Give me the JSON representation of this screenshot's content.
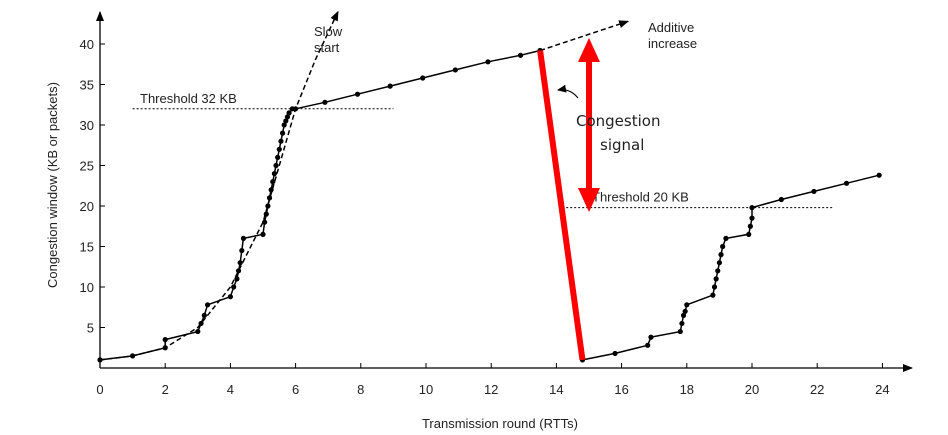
{
  "chart_data": {
    "type": "line",
    "xlabel": "Transmission round (RTTs)",
    "ylabel": "Congestion window  (KB or packets)",
    "xlim": [
      0,
      25
    ],
    "ylim": [
      0,
      42
    ],
    "x_ticks": [
      0,
      2,
      4,
      6,
      8,
      10,
      12,
      14,
      16,
      18,
      20,
      22,
      24
    ],
    "y_ticks": [
      5,
      10,
      15,
      20,
      25,
      30,
      35,
      40
    ],
    "grid": false,
    "series": [
      {
        "style": "solid-with-markers",
        "color": "#000000",
        "x": [
          0,
          1,
          2,
          2,
          3,
          3.1,
          3.2,
          3.3,
          4,
          4.1,
          4.2,
          4.25,
          4.3,
          4.35,
          4.4,
          5,
          5.05,
          5.1,
          5.15,
          5.2,
          5.25,
          5.3,
          5.35,
          5.4,
          5.45,
          5.5,
          5.55,
          5.6,
          5.65,
          5.7,
          5.75,
          5.8,
          5.9,
          6,
          6.9,
          7.9,
          8.9,
          9.9,
          10.9,
          11.9,
          12.9,
          13.5
        ],
        "y": [
          1,
          1.5,
          2.5,
          3.5,
          4.5,
          5.5,
          6.5,
          7.8,
          8.8,
          10,
          11,
          12,
          13,
          14.5,
          16,
          16.5,
          18,
          19,
          20,
          21,
          22,
          23,
          24,
          25,
          26,
          27,
          28,
          29,
          30,
          30.5,
          31,
          31.5,
          32,
          32,
          32.8,
          33.8,
          34.8,
          35.8,
          36.8,
          37.8,
          38.6,
          39.2
        ]
      },
      {
        "style": "solid-with-markers",
        "color": "#000000",
        "x": [
          14.8,
          15.8,
          16.8,
          16.9,
          17.8,
          17.85,
          17.9,
          17.95,
          18,
          18.8,
          18.85,
          18.9,
          18.95,
          19,
          19.05,
          19.1,
          19.2,
          19.9,
          19.95,
          20,
          20,
          20.9,
          21.9,
          22.9,
          23.9
        ],
        "y": [
          1,
          1.8,
          2.8,
          3.8,
          4.5,
          5.5,
          6.5,
          7,
          7.8,
          9,
          10,
          11,
          12,
          13,
          14,
          15,
          16,
          16.5,
          17.5,
          18.5,
          19.8,
          20.8,
          21.8,
          22.8,
          23.8
        ]
      },
      {
        "style": "dashed",
        "color": "#000000",
        "x": [
          0,
          1,
          2,
          3,
          4,
          5,
          6,
          6.6,
          7.3
        ],
        "y": [
          1,
          1.5,
          2.5,
          5,
          10,
          18,
          32,
          38,
          44
        ]
      },
      {
        "style": "dashed",
        "color": "#000000",
        "x": [
          13.5,
          16.2
        ],
        "y": [
          39.2,
          42.8
        ]
      }
    ],
    "thresholds": [
      {
        "label": "Threshold 32 KB",
        "y": 32,
        "x_start": 1,
        "x_end": 9
      },
      {
        "label": "Threshold 20 KB",
        "y": 19.8,
        "x_start": 14.3,
        "x_end": 22.5
      }
    ],
    "annotations": {
      "slow_start": "Slow\nstart",
      "additive_increase": "Additive\nincrease",
      "congestion_signal": "Congestion\nsignal"
    },
    "overlay": {
      "color": "#ff0000",
      "drop_line": {
        "x": [
          13.5,
          14.8
        ],
        "y": [
          39.2,
          1
        ]
      },
      "double_arrow": {
        "x": 15.0,
        "y": [
          40.5,
          19.5
        ]
      }
    }
  }
}
